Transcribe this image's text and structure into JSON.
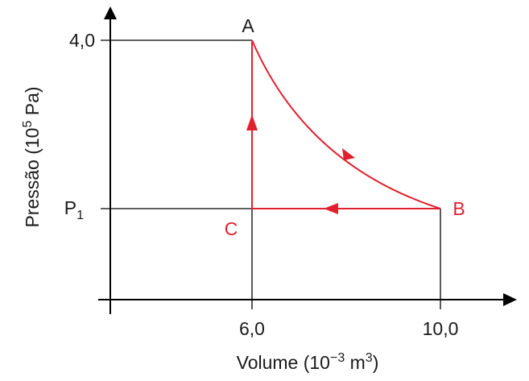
{
  "y_axis": {
    "title": {
      "text": "Pressão (10",
      "sup": "5",
      "end": " Pa)"
    },
    "ticks": [
      {
        "text": "4,0"
      },
      {
        "text": "P",
        "sub": "1"
      }
    ]
  },
  "x_axis": {
    "title": {
      "text": "Volume (10",
      "sup": "−3",
      "mid": " m",
      "sup2": "3",
      "end": ")"
    },
    "ticks": [
      "6,0",
      "10,0"
    ]
  },
  "points": [
    "A",
    "B",
    "C"
  ]
}
